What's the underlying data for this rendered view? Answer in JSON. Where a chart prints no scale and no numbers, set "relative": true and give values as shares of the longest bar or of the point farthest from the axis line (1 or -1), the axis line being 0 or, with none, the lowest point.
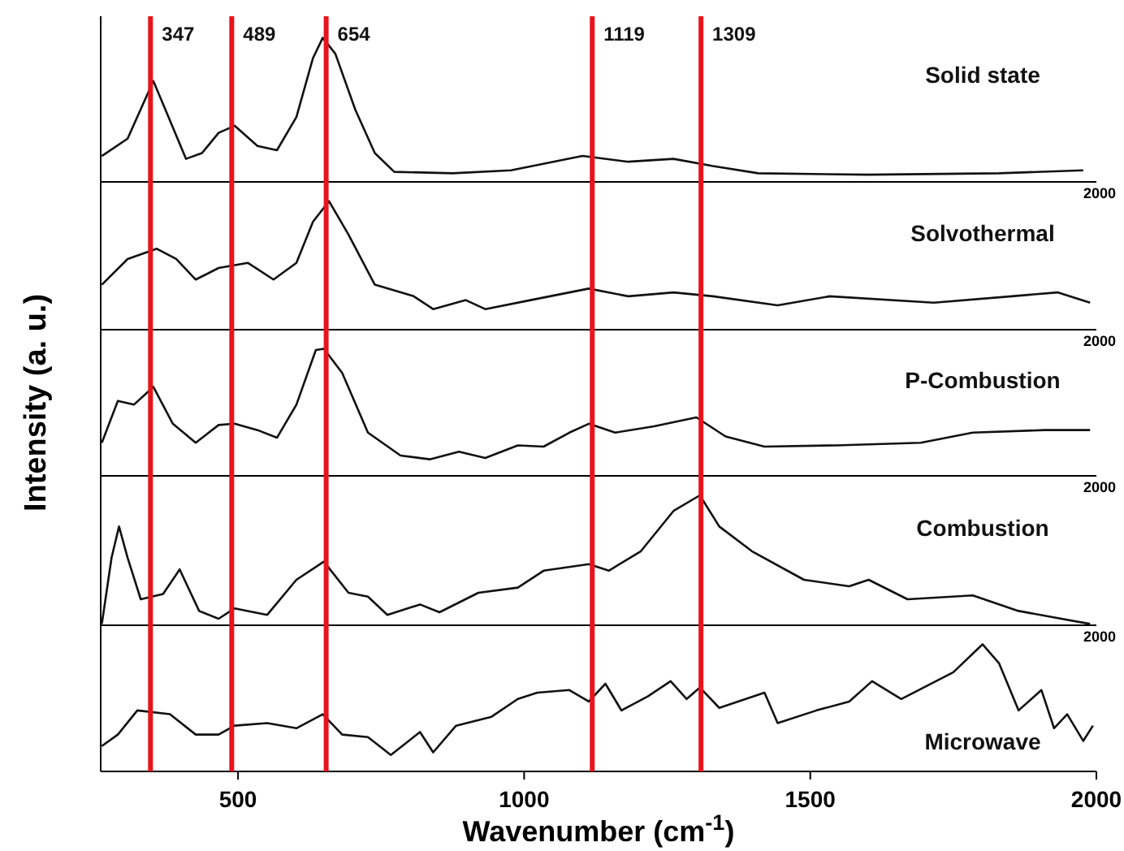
{
  "chart_data": [
    {
      "type": "line",
      "relative": true,
      "xlim": [
        260,
        2000
      ],
      "tick_labels": false,
      "annotations": [
        "2000"
      ],
      "x": [
        262,
        307,
        352,
        368,
        409,
        437,
        466,
        494,
        534,
        568,
        602,
        631,
        648,
        670,
        705,
        739,
        773,
        875,
        977,
        1102,
        1182,
        1261,
        1330,
        1409,
        1602,
        1830,
        1977
      ],
      "series": [
        {
          "name": "Solid state",
          "color": "#111111",
          "values": [
            0.18,
            0.3,
            0.7,
            0.55,
            0.16,
            0.2,
            0.34,
            0.39,
            0.25,
            0.22,
            0.45,
            0.86,
            1,
            0.89,
            0.5,
            0.2,
            0.07,
            0.06,
            0.08,
            0.18,
            0.14,
            0.16,
            0.11,
            0.06,
            0.05,
            0.06,
            0.08
          ]
        }
      ],
      "ref_lines": [
        {
          "axis": "x",
          "value": 347,
          "label": "347",
          "color": "#e8141c"
        },
        {
          "axis": "x",
          "value": 489,
          "label": "489",
          "color": "#e8141c"
        },
        {
          "axis": "x",
          "value": 654,
          "label": "654",
          "color": "#e8141c"
        },
        {
          "axis": "x",
          "value": 1119,
          "label": "1119",
          "color": "#e8141c"
        },
        {
          "axis": "x",
          "value": 1309,
          "label": "1309",
          "color": "#e8141c"
        }
      ]
    },
    {
      "type": "line",
      "relative": true,
      "xlim": [
        260,
        2000
      ],
      "tick_labels": false,
      "annotations": [
        "2000"
      ],
      "x": [
        262,
        307,
        358,
        392,
        426,
        466,
        517,
        562,
        602,
        631,
        659,
        693,
        739,
        807,
        841,
        898,
        932,
        1011,
        1113,
        1182,
        1261,
        1330,
        1443,
        1534,
        1716,
        1852,
        1932,
        1989
      ],
      "series": [
        {
          "name": "Solvothermal",
          "color": "#111111",
          "values": [
            0.35,
            0.55,
            0.63,
            0.55,
            0.39,
            0.48,
            0.52,
            0.39,
            0.52,
            0.84,
            1,
            0.74,
            0.35,
            0.26,
            0.16,
            0.23,
            0.16,
            0.23,
            0.32,
            0.26,
            0.29,
            0.26,
            0.19,
            0.26,
            0.21,
            0.26,
            0.29,
            0.21
          ]
        }
      ],
      "ref_lines": [
        {
          "axis": "x",
          "value": 347,
          "color": "#e8141c"
        },
        {
          "axis": "x",
          "value": 489,
          "color": "#e8141c"
        },
        {
          "axis": "x",
          "value": 654,
          "color": "#e8141c"
        },
        {
          "axis": "x",
          "value": 1119,
          "color": "#e8141c"
        },
        {
          "axis": "x",
          "value": 1309,
          "color": "#e8141c"
        }
      ]
    },
    {
      "type": "line",
      "relative": true,
      "xlim": [
        260,
        2000
      ],
      "tick_labels": false,
      "annotations": [
        "2000"
      ],
      "ylabel": "Intensity (a. u.)",
      "x": [
        262,
        290,
        318,
        352,
        386,
        426,
        466,
        494,
        534,
        568,
        602,
        636,
        650,
        682,
        727,
        784,
        835,
        886,
        932,
        989,
        1034,
        1079,
        1113,
        1159,
        1227,
        1301,
        1352,
        1420,
        1545,
        1693,
        1784,
        1909,
        1989
      ],
      "series": [
        {
          "name": "P-Combustion",
          "color": "#111111",
          "values": [
            0.26,
            0.59,
            0.56,
            0.7,
            0.41,
            0.26,
            0.4,
            0.41,
            0.36,
            0.3,
            0.56,
            0.99,
            1,
            0.81,
            0.34,
            0.16,
            0.13,
            0.19,
            0.14,
            0.24,
            0.23,
            0.34,
            0.41,
            0.34,
            0.39,
            0.46,
            0.31,
            0.23,
            0.24,
            0.26,
            0.34,
            0.36,
            0.36
          ]
        }
      ],
      "ref_lines": [
        {
          "axis": "x",
          "value": 347,
          "color": "#e8141c"
        },
        {
          "axis": "x",
          "value": 489,
          "color": "#e8141c"
        },
        {
          "axis": "x",
          "value": 654,
          "color": "#e8141c"
        },
        {
          "axis": "x",
          "value": 1119,
          "color": "#e8141c"
        },
        {
          "axis": "x",
          "value": 1309,
          "color": "#e8141c"
        }
      ]
    },
    {
      "type": "line",
      "relative": true,
      "xlim": [
        260,
        2000
      ],
      "tick_labels": false,
      "annotations": [
        "2000"
      ],
      "x": [
        262,
        279,
        292,
        307,
        330,
        369,
        398,
        432,
        466,
        494,
        551,
        602,
        650,
        693,
        727,
        761,
        818,
        852,
        920,
        989,
        1034,
        1113,
        1148,
        1204,
        1261,
        1307,
        1341,
        1398,
        1489,
        1568,
        1602,
        1670,
        1784,
        1864,
        1989
      ],
      "series": [
        {
          "name": "Combustion",
          "color": "#111111",
          "values": [
            0.01,
            0.52,
            0.76,
            0.52,
            0.2,
            0.24,
            0.43,
            0.11,
            0.05,
            0.13,
            0.08,
            0.35,
            0.49,
            0.25,
            0.22,
            0.08,
            0.16,
            0.1,
            0.25,
            0.29,
            0.42,
            0.47,
            0.42,
            0.57,
            0.88,
            1,
            0.76,
            0.57,
            0.35,
            0.3,
            0.35,
            0.2,
            0.23,
            0.11,
            0.01
          ]
        }
      ],
      "ref_lines": [
        {
          "axis": "x",
          "value": 347,
          "color": "#e8141c"
        },
        {
          "axis": "x",
          "value": 489,
          "color": "#e8141c"
        },
        {
          "axis": "x",
          "value": 654,
          "color": "#e8141c"
        },
        {
          "axis": "x",
          "value": 1119,
          "color": "#e8141c"
        },
        {
          "axis": "x",
          "value": 1309,
          "color": "#e8141c"
        }
      ]
    },
    {
      "type": "line",
      "relative": true,
      "xlim": [
        260,
        2000
      ],
      "xticks": [
        500,
        1000,
        1500,
        2000
      ],
      "tick_labels": "x",
      "xlabel": "Wavenumber (cm$^{-1}$)",
      "x": [
        262,
        290,
        324,
        381,
        426,
        466,
        494,
        551,
        602,
        648,
        682,
        727,
        767,
        818,
        841,
        881,
        943,
        989,
        1023,
        1079,
        1113,
        1142,
        1170,
        1216,
        1256,
        1284,
        1307,
        1341,
        1420,
        1443,
        1511,
        1568,
        1608,
        1659,
        1750,
        1801,
        1830,
        1864,
        1904,
        1926,
        1949,
        1977,
        1994
      ],
      "series": [
        {
          "name": "Microwave",
          "color": "#111111",
          "values": [
            0.2,
            0.29,
            0.48,
            0.45,
            0.29,
            0.29,
            0.36,
            0.38,
            0.34,
            0.45,
            0.29,
            0.27,
            0.13,
            0.31,
            0.15,
            0.36,
            0.43,
            0.57,
            0.62,
            0.64,
            0.55,
            0.69,
            0.48,
            0.59,
            0.71,
            0.57,
            0.66,
            0.5,
            0.62,
            0.38,
            0.48,
            0.55,
            0.71,
            0.57,
            0.78,
            1,
            0.85,
            0.48,
            0.64,
            0.34,
            0.45,
            0.24,
            0.36
          ]
        }
      ],
      "ref_lines": [
        {
          "axis": "x",
          "value": 347,
          "color": "#e8141c"
        },
        {
          "axis": "x",
          "value": 489,
          "color": "#e8141c"
        },
        {
          "axis": "x",
          "value": 654,
          "color": "#e8141c"
        },
        {
          "axis": "x",
          "value": 1119,
          "color": "#e8141c"
        },
        {
          "axis": "x",
          "value": 1309,
          "color": "#e8141c"
        }
      ]
    }
  ]
}
